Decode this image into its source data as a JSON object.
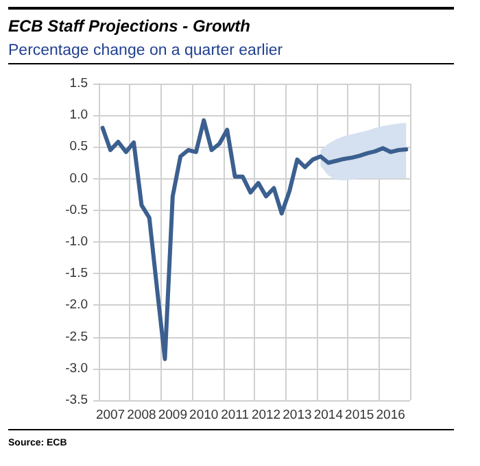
{
  "chart_data": {
    "type": "line",
    "title": "ECB Staff Projections -  Growth",
    "subtitle": "Percentage change on a quarter earlier",
    "annotations": [
      "Source:  ECB"
    ],
    "categories": [
      null,
      "2007",
      null,
      null,
      null,
      "2008",
      null,
      null,
      null,
      "2009",
      null,
      null,
      null,
      "2010",
      null,
      null,
      null,
      "2011",
      null,
      null,
      null,
      "2012",
      null,
      null,
      null,
      "2013",
      null,
      null,
      null,
      "2014",
      null,
      null,
      null,
      "2015",
      null,
      null,
      null,
      "2016",
      null,
      null
    ],
    "series": [
      {
        "color": "#3b5f8f",
        "values": [
          0.8,
          0.45,
          0.58,
          0.42,
          0.57,
          -0.42,
          -0.62,
          -1.75,
          -2.85,
          -0.28,
          0.35,
          0.45,
          0.42,
          0.92,
          0.45,
          0.55,
          0.77,
          0.03,
          0.03,
          -0.22,
          -0.07,
          -0.28,
          -0.15,
          -0.55,
          -0.2,
          0.3,
          0.18,
          0.3,
          0.35,
          0.25,
          0.28,
          0.31,
          0.33,
          0.36,
          0.4,
          0.43,
          0.48,
          0.42,
          0.45,
          0.46
        ],
        "lower": [
          null,
          null,
          null,
          null,
          null,
          null,
          null,
          null,
          null,
          null,
          null,
          null,
          null,
          null,
          null,
          null,
          null,
          null,
          null,
          null,
          null,
          null,
          null,
          null,
          null,
          null,
          null,
          null,
          0.2,
          0.05,
          -0.02,
          -0.03,
          -0.02,
          0.0,
          0.0,
          0.0,
          0.0,
          0.0,
          0.0,
          0.0
        ],
        "upper": [
          null,
          null,
          null,
          null,
          null,
          null,
          null,
          null,
          null,
          null,
          null,
          null,
          null,
          null,
          null,
          null,
          null,
          null,
          null,
          null,
          null,
          null,
          null,
          null,
          null,
          null,
          null,
          null,
          0.45,
          0.55,
          0.62,
          0.67,
          0.7,
          0.73,
          0.76,
          0.8,
          0.83,
          0.85,
          0.87,
          0.88
        ]
      }
    ],
    "ylim": [
      -3.5,
      1.5
    ],
    "yticks": [
      -3.5,
      {
        "value": -3,
        "label": "-3.0"
      },
      -2.5,
      {
        "value": -2,
        "label": "-2.0"
      },
      -1.5,
      {
        "value": -1,
        "label": "-1.0"
      },
      -0.5,
      {
        "value": 0,
        "label": "0.0"
      },
      0.5,
      {
        "value": 1,
        "label": "1.0"
      },
      1.5
    ],
    "grid": true,
    "marker": "none",
    "line_style": "solid"
  }
}
